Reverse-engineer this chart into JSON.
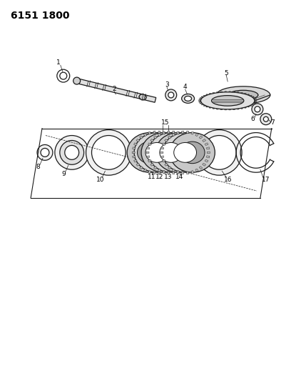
{
  "title": "6151 1800",
  "background_color": "#ffffff",
  "line_color": "#1a1a1a",
  "fig_width": 4.08,
  "fig_height": 5.33,
  "dpi": 100,
  "title_fontsize": 10,
  "title_fontweight": "bold",
  "label_fontsize": 6.5
}
